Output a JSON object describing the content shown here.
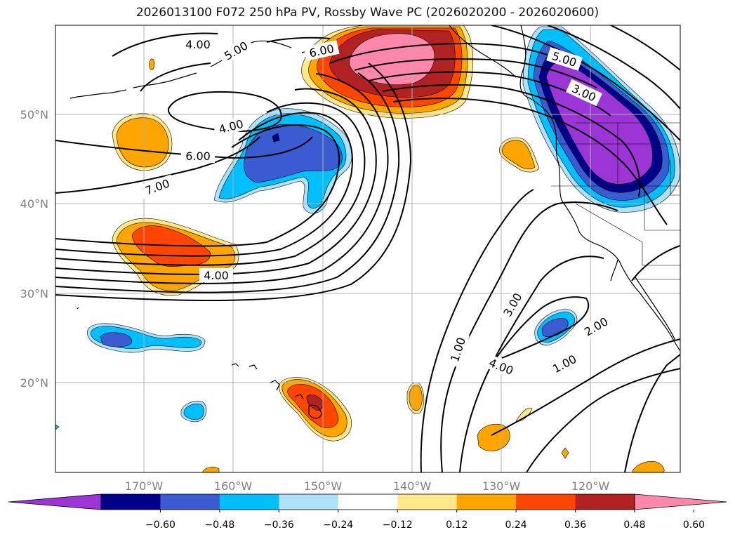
{
  "title": "2026013100 F072 250 hPa PV, Rossby Wave PC (2026020200 - 2026020600)",
  "lat_labels": [
    "50°N",
    "40°N",
    "30°N",
    "20°N"
  ],
  "lon_labels": [
    "170°W",
    "160°W",
    "150°W",
    "140°W",
    "130°W",
    "120°W"
  ],
  "contour_labels": [
    "4.00",
    "5.00",
    "6.00",
    "4.00",
    "6.00",
    "7.00",
    "4.00",
    "5.00",
    "3.00",
    "1.00",
    "3.00",
    "4.00",
    "2.00",
    "1.00"
  ],
  "colorbar": {
    "tick_labels": [
      "−0.60",
      "−0.48",
      "−0.36",
      "−0.24",
      "−0.12",
      "0.12",
      "0.24",
      "0.36",
      "0.48",
      "0.60"
    ],
    "colors": [
      "#9b35d6",
      "#00008b",
      "#3a5cd0",
      "#00bfff",
      "#ade2fa",
      "#ffffff",
      "#ffe88a",
      "#ffa500",
      "#ff4500",
      "#b22222",
      "#ff88aa"
    ]
  }
}
